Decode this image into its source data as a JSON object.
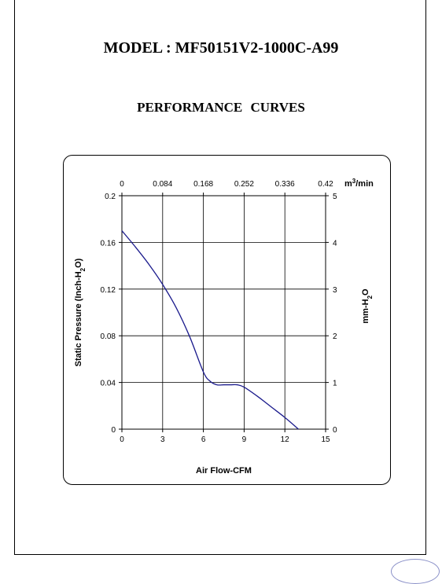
{
  "page": {
    "model": "MODEL : MF50151V2-1000C-A99",
    "subtitle": "PERFORMANCE    CURVES"
  },
  "chart_data": {
    "type": "line",
    "xlabel": "Air Flow-CFM",
    "ylabel": "Static Pressure (Inch-H2O)",
    "ylabel_parts": [
      "Static Pressure (Inch-H",
      "2",
      "O)"
    ],
    "y2label_parts": [
      "mm-H",
      "2",
      "O"
    ],
    "x2unit_parts": [
      "m",
      "3",
      "/min"
    ],
    "xlim": [
      0,
      15
    ],
    "ylim": [
      0,
      0.2
    ],
    "xticks": [
      0,
      3,
      6,
      9,
      12,
      15
    ],
    "yticks": [
      0,
      0.04,
      0.08,
      0.12,
      0.16,
      0.2
    ],
    "ytick_labels": [
      "0",
      "0.04",
      "0.08",
      "0.12",
      "0.16",
      "0.2"
    ],
    "x2ticks": [
      "0",
      "0.084",
      "0.168",
      "0.252",
      "0.336",
      "0.42"
    ],
    "y2ticks": [
      "0",
      "1",
      "2",
      "3",
      "4",
      "5"
    ],
    "grid": true,
    "series": [
      {
        "color": "#1a1a8c",
        "x": [
          0,
          1,
          2,
          3,
          4,
          5,
          6,
          6.5,
          7,
          7.5,
          8,
          8.5,
          9,
          10,
          11,
          12,
          13
        ],
        "y": [
          0.17,
          0.156,
          0.141,
          0.124,
          0.104,
          0.079,
          0.049,
          0.041,
          0.038,
          0.038,
          0.038,
          0.038,
          0.036,
          0.028,
          0.019,
          0.01,
          0.0
        ]
      }
    ]
  }
}
